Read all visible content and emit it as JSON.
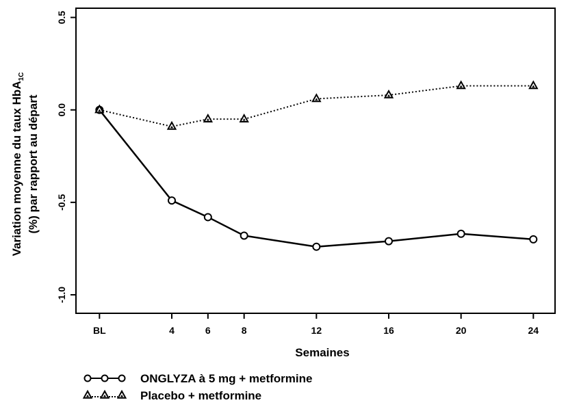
{
  "chart_data": {
    "type": "line",
    "xlabel": "Semaines",
    "ylabel_line1_main": "Variation moyenne du taux HbA",
    "ylabel_line1_sub": "1C",
    "ylabel_line2": "(%) par rapport au départ",
    "categories": [
      "BL",
      "4",
      "6",
      "8",
      "12",
      "16",
      "20",
      "24"
    ],
    "x": [
      0,
      4,
      6,
      8,
      12,
      16,
      20,
      24
    ],
    "x_tick_labels": [
      "BL",
      "4",
      "6",
      "8",
      "12",
      "16",
      "20",
      "24"
    ],
    "ylim": [
      -1.1,
      0.55
    ],
    "y_ticks": [
      0.5,
      0.0,
      -0.5,
      -1.0
    ],
    "y_tick_labels": [
      "0.5",
      "0.0",
      "-0.5",
      "-1.0"
    ],
    "grid": false,
    "legend_position": "bottom-left",
    "series": [
      {
        "name": "ONGLYZA à 5 mg + metformine",
        "marker": "circle",
        "line_style": "solid",
        "values": [
          0.0,
          -0.49,
          -0.58,
          -0.68,
          -0.74,
          -0.71,
          -0.67,
          -0.7
        ],
        "legend_glyph": "o–o–o"
      },
      {
        "name": "Placebo + metformine",
        "marker": "triangle",
        "line_style": "dotted",
        "values": [
          0.0,
          -0.09,
          -0.05,
          -0.05,
          0.06,
          0.08,
          0.13,
          0.13
        ],
        "legend_glyph": "▲··▲··▲"
      }
    ]
  }
}
